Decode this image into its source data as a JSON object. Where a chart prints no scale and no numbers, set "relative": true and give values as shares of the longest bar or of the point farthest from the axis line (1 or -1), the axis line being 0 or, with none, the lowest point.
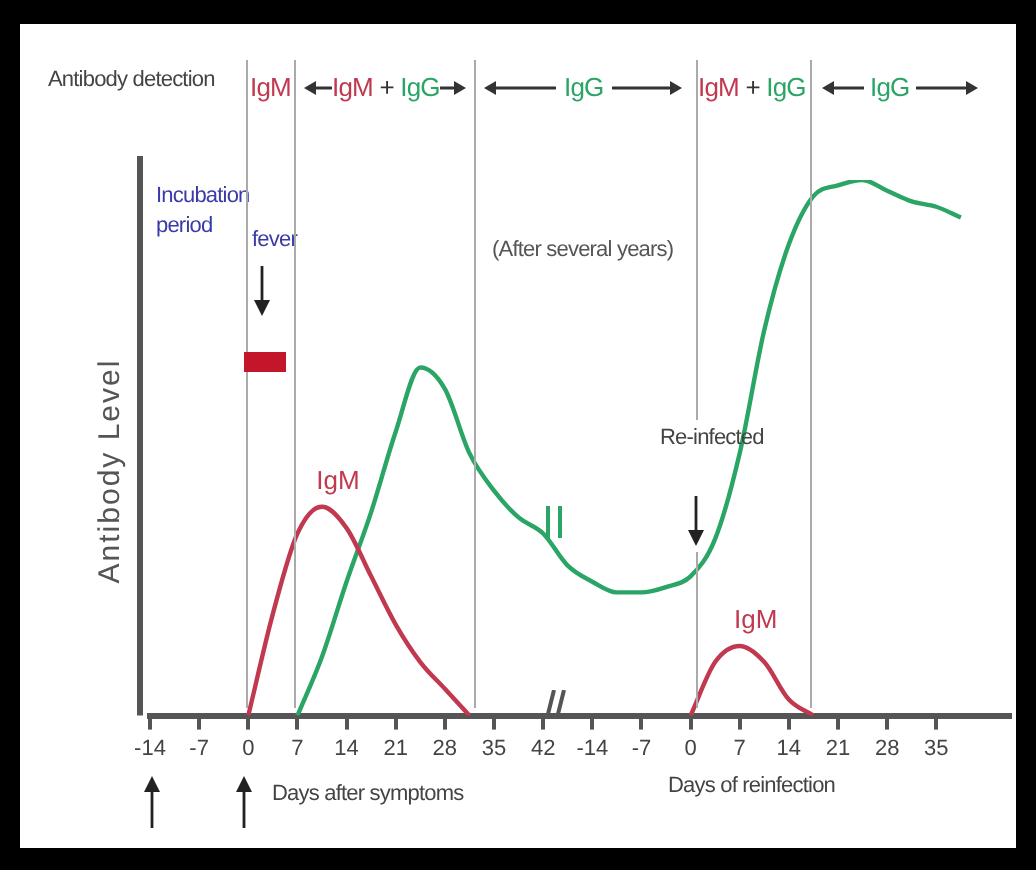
{
  "chart_data": {
    "type": "line",
    "relative": true,
    "ylabel": "Antibody Level",
    "legend": false,
    "grid": false,
    "marker": "none",
    "categories": [
      "-14",
      null,
      "-7",
      null,
      "0",
      null,
      "7",
      null,
      "14",
      null,
      "21",
      null,
      "28",
      null,
      "35",
      null,
      "42",
      null,
      "-14",
      null,
      "-7",
      null,
      "0",
      null,
      "7",
      null,
      "14",
      null,
      "21",
      null,
      "28",
      null,
      "35",
      null,
      null,
      null
    ],
    "series": [
      {
        "name": "IgM",
        "color": "#c0394f",
        "values": [
          null,
          null,
          null,
          null,
          0,
          0.19,
          0.34,
          0.39,
          0.35,
          0.26,
          0.17,
          0.1,
          0.05,
          0,
          null,
          null,
          null,
          null,
          null,
          null,
          null,
          null,
          null,
          null,
          null,
          null,
          null,
          null,
          null,
          null,
          null,
          null,
          null,
          null,
          null,
          null
        ]
      },
      {
        "color": "#2aa566",
        "values": [
          null,
          null,
          null,
          null,
          null,
          null,
          0,
          0.11,
          0.25,
          0.38,
          0.53,
          0.65,
          0.61,
          0.49,
          0.42,
          0.37,
          0.34,
          0.28,
          0.25,
          0.23,
          0.23,
          0.24,
          0.26,
          0.33,
          0.49,
          0.72,
          0.88,
          0.97,
          0.99,
          1,
          0.98,
          0.96,
          0.95,
          0.93,
          null,
          null
        ]
      },
      {
        "name": "IgM",
        "color": "#c0394f",
        "values": [
          null,
          null,
          null,
          null,
          null,
          null,
          null,
          null,
          null,
          null,
          null,
          null,
          null,
          null,
          null,
          null,
          null,
          null,
          null,
          null,
          null,
          null,
          0,
          0.1,
          0.13,
          0.1,
          0.03,
          0,
          null,
          null,
          null,
          null,
          null,
          null,
          null,
          null
        ]
      }
    ],
    "annotations": [
      "Antibody detection",
      "IgM",
      "IgM + IgG",
      "IgG",
      "IgM + IgG",
      "IgG",
      "Incubation period",
      "fever",
      "(After several years)",
      "Re-infected",
      "Days after symptoms",
      "Days of reinfection"
    ]
  }
}
